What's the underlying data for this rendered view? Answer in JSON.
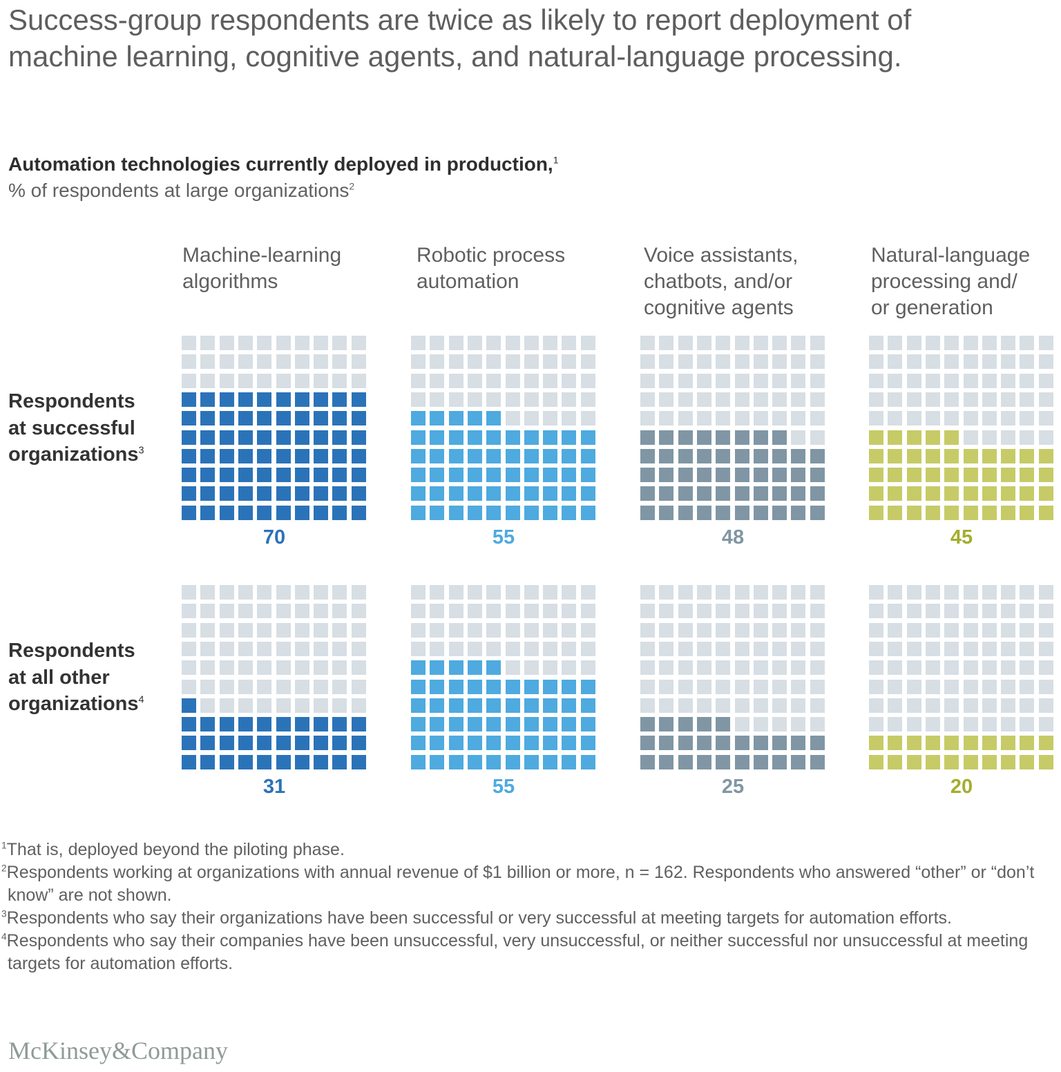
{
  "headline": "Success-group respondents are twice as likely to report deployment of machine learning, cognitive agents, and natural-language processing.",
  "subtitle": "Automation technologies currently deployed in production,",
  "subtitle_footnote": "1",
  "unit_label": "% of respondents at large organizations",
  "unit_footnote": "2",
  "colors": {
    "empty": "#d7dee4",
    "machine_learning": "#2b73b8",
    "rpa": "#4eaadf",
    "voice": "#8096a4",
    "nlp": "#c6cb67",
    "nlp_text": "#a4ad2e"
  },
  "chart_data": {
    "type": "waffle",
    "title": "Automation technologies currently deployed in production",
    "unit": "% of respondents at large organizations",
    "grid": "10x10 (each square = 1%)",
    "categories": [
      "Machine-learning algorithms",
      "Robotic process automation",
      "Voice assistants, chatbots, and/or cognitive agents",
      "Natural-language processing and/or generation"
    ],
    "series": [
      {
        "name": "Respondents at successful organizations",
        "values": [
          70,
          55,
          48,
          45
        ],
        "filled_squares": [
          70,
          55,
          48,
          45
        ]
      },
      {
        "name": "Respondents at all other organizations",
        "values": [
          31,
          55,
          25,
          20
        ],
        "filled_squares": [
          31,
          55,
          25,
          20
        ]
      }
    ]
  },
  "columns": [
    {
      "label": "Machine-learning\nalgorithms",
      "color_key": "machine_learning"
    },
    {
      "label": "Robotic process\nautomation",
      "color_key": "rpa"
    },
    {
      "label": "Voice assistants,\nchatbots, and/or\ncognitive agents",
      "color_key": "voice"
    },
    {
      "label": "Natural-language\nprocessing and/\nor generation",
      "color_key": "nlp"
    }
  ],
  "rows": [
    {
      "label": "Respondents\nat successful\norganizations",
      "footnote": "3",
      "values": [
        "70",
        "55",
        "48",
        "45"
      ]
    },
    {
      "label": "Respondents\nat all other\norganizations",
      "footnote": "4",
      "values": [
        "31",
        "55",
        "25",
        "20"
      ]
    }
  ],
  "footnotes": [
    {
      "num": "1",
      "text": "That is, deployed beyond the piloting phase."
    },
    {
      "num": "2",
      "text": "Respondents working at organizations with annual revenue of $1 billion or more, n = 162. Respondents who answered “other” or “don’t know” are not shown."
    },
    {
      "num": "3",
      "text": "Respondents who say their organizations have been successful or very successful at meeting targets for automation efforts."
    },
    {
      "num": "4",
      "text": "Respondents who say their companies have been unsuccessful, very unsuccessful, or neither successful nor unsuccessful at meeting targets for automation efforts."
    }
  ],
  "logo": "McKinsey&Company"
}
